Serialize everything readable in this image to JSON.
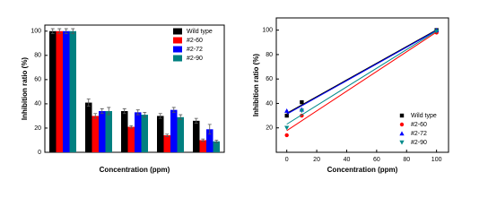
{
  "chart_data": [
    {
      "type": "bar",
      "y_label": "Inhibition ratio (%)",
      "x_label": "Concentration (ppm)",
      "categories": [
        null,
        null,
        null,
        null,
        null
      ],
      "series": [
        {
          "name": "Wild type",
          "color": "#000000",
          "values": [
            100,
            41,
            34,
            30,
            26
          ],
          "errors": [
            2,
            3,
            2,
            2,
            2
          ]
        },
        {
          "name": "#2-60",
          "color": "#ff0000",
          "values": [
            100,
            30,
            21,
            14,
            10
          ],
          "errors": [
            2,
            2,
            1,
            1,
            1
          ]
        },
        {
          "name": "#2-72",
          "color": "#0000ff",
          "values": [
            100,
            34,
            33,
            35,
            19
          ],
          "errors": [
            2,
            2,
            2,
            2,
            4
          ]
        },
        {
          "name": "#2-90",
          "color": "#008080",
          "values": [
            100,
            34,
            31,
            29,
            9
          ],
          "errors": [
            2,
            3,
            2,
            2,
            1
          ]
        }
      ],
      "ylim": [
        0,
        105
      ],
      "yticks": [
        0,
        20,
        40,
        60,
        80,
        100
      ],
      "legend": "top-right",
      "grid": false
    },
    {
      "type": "scatter",
      "y_label": "Inhibition ratio (%)",
      "x_label": "Concentration (ppm)",
      "series": [
        {
          "name": "Wild type",
          "color": "#000000",
          "marker": "square",
          "x": [
            0,
            10,
            100
          ],
          "values": [
            30,
            41,
            100
          ]
        },
        {
          "name": "#2-60",
          "color": "#ff0000",
          "marker": "circle",
          "x": [
            0,
            10,
            100
          ],
          "values": [
            14,
            30,
            98
          ]
        },
        {
          "name": "#2-72",
          "color": "#0000ff",
          "marker": "triangle-up",
          "x": [
            0,
            10,
            100
          ],
          "values": [
            34,
            35,
            100
          ]
        },
        {
          "name": "#2-90",
          "color": "#008b8b",
          "marker": "triangle-down",
          "x": [
            0,
            10,
            100
          ],
          "values": [
            20,
            34,
            99
          ]
        }
      ],
      "xlim": [
        -7,
        108
      ],
      "xticks": [
        0,
        20,
        40,
        60,
        80,
        100
      ],
      "ylim": [
        0,
        110
      ],
      "yticks": [
        20,
        40,
        60,
        80,
        100
      ],
      "legend": "bottom-right",
      "fit_line": true,
      "grid": false
    }
  ]
}
